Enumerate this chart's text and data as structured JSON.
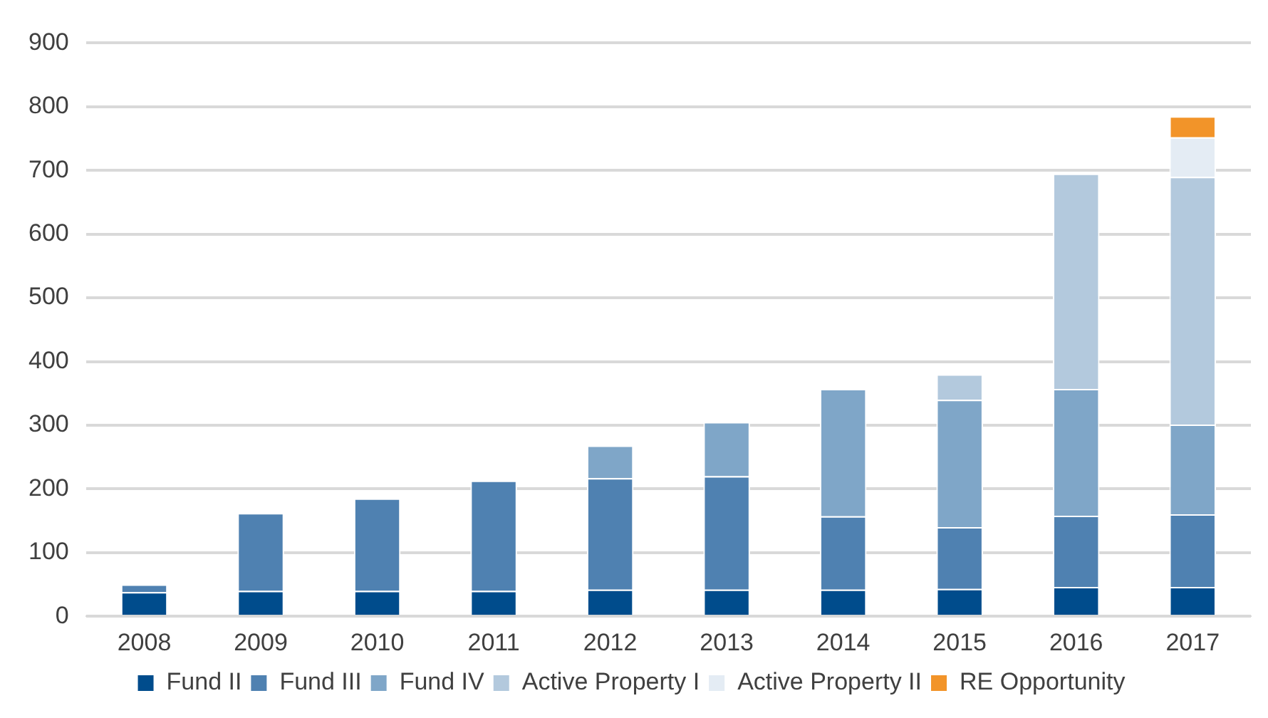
{
  "chart_data": {
    "type": "bar",
    "stacked": true,
    "categories": [
      "2008",
      "2009",
      "2010",
      "2011",
      "2012",
      "2013",
      "2014",
      "2015",
      "2016",
      "2017"
    ],
    "series": [
      {
        "name": "Fund II",
        "color": "#004c8c",
        "values": [
          38,
          40,
          40,
          40,
          42,
          42,
          42,
          43,
          46,
          46
        ]
      },
      {
        "name": "Fund III",
        "color": "#4f81b1",
        "values": [
          12,
          122,
          145,
          173,
          175,
          178,
          115,
          97,
          112,
          114
        ]
      },
      {
        "name": "Fund IV",
        "color": "#7fa6c8",
        "values": [
          null,
          null,
          null,
          null,
          51,
          85,
          200,
          200,
          199,
          141
        ]
      },
      {
        "name": "Active Property I",
        "color": "#b3c9dd",
        "values": [
          null,
          null,
          null,
          null,
          null,
          null,
          null,
          40,
          338,
          389
        ]
      },
      {
        "name": "Active Property II",
        "color": "#e4ecf4",
        "values": [
          null,
          null,
          null,
          null,
          null,
          null,
          null,
          null,
          null,
          62
        ]
      },
      {
        "name": "RE Opportunity",
        "color": "#f29429",
        "values": [
          null,
          null,
          null,
          null,
          null,
          null,
          null,
          null,
          null,
          33
        ]
      }
    ],
    "ylim": [
      0,
      900
    ],
    "yticks": [
      0,
      100,
      200,
      300,
      400,
      500,
      600,
      700,
      800,
      900
    ],
    "grid": "y",
    "legend": "bottom"
  }
}
